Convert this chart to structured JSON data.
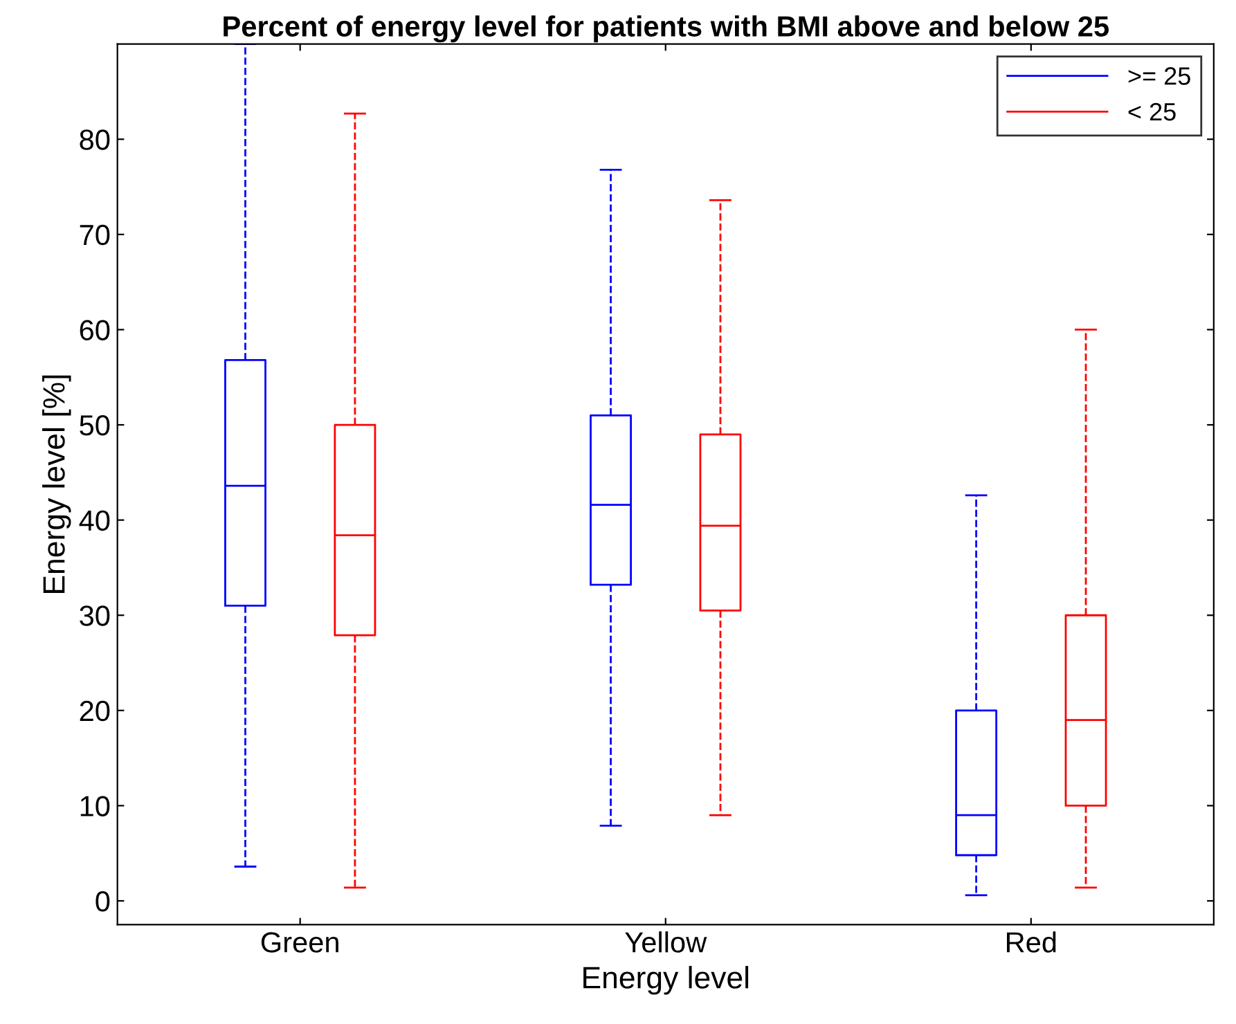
{
  "chart_data": {
    "type": "box",
    "title": "Percent of energy level for patients with BMI above and below 25",
    "xlabel": "Energy level",
    "ylabel": "Energy level [%]",
    "categories": [
      "Green",
      "Yellow",
      "Red"
    ],
    "series": [
      {
        "name": ">= 25",
        "color": "#0000ff",
        "boxes": [
          {
            "low": 3.6,
            "q1": 31,
            "median": 43.6,
            "q3": 56.8,
            "high": 90
          },
          {
            "low": 7.9,
            "q1": 33.2,
            "median": 41.6,
            "q3": 51,
            "high": 76.8
          },
          {
            "low": 0.6,
            "q1": 4.8,
            "median": 9,
            "q3": 20,
            "high": 42.6
          }
        ]
      },
      {
        "name": "< 25",
        "color": "#ff0000",
        "boxes": [
          {
            "low": 1.4,
            "q1": 27.9,
            "median": 38.4,
            "q3": 50,
            "high": 82.7
          },
          {
            "low": 9,
            "q1": 30.5,
            "median": 39.4,
            "q3": 49,
            "high": 73.6
          },
          {
            "low": 1.4,
            "q1": 10,
            "median": 19,
            "q3": 30,
            "high": 60
          }
        ]
      }
    ],
    "ylim": [
      -2.5,
      90
    ],
    "yticks": [
      0,
      10,
      20,
      30,
      40,
      50,
      60,
      70,
      80
    ],
    "grid": false,
    "legend": "top right",
    "line_style": "dashed"
  }
}
